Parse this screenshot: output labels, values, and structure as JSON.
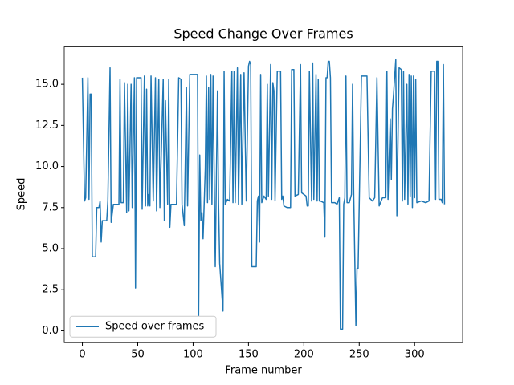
{
  "chart_data": {
    "type": "line",
    "title": "Speed Change Over Frames",
    "xlabel": "Frame number",
    "ylabel": "Speed",
    "legend_loc": "lower left",
    "xlim": [
      -16.35,
      343.35
    ],
    "ylim": [
      -0.72,
      17.32
    ],
    "xticks": [
      0,
      50,
      100,
      150,
      200,
      250,
      300
    ],
    "yticks": [
      {
        "value": 0,
        "label": "0.0"
      },
      2.5,
      {
        "value": 5,
        "label": "5.0"
      },
      7.5,
      {
        "value": 10,
        "label": "10.0"
      },
      12.5,
      {
        "value": 15,
        "label": "15.0"
      }
    ],
    "series": [
      {
        "name": "Speed over frames",
        "color": "#1f77b4",
        "x": [
          0,
          2,
          3,
          5,
          6,
          7,
          8,
          9,
          12,
          13,
          15,
          16,
          17,
          18,
          22,
          23,
          25,
          26,
          28,
          33,
          34,
          35,
          37,
          38,
          40,
          41,
          42,
          44,
          45,
          47,
          48,
          49,
          53,
          54,
          56,
          57,
          58,
          59,
          60,
          61,
          62,
          64,
          66,
          67,
          69,
          70,
          73,
          74,
          75,
          77,
          78,
          79,
          80,
          83,
          85,
          87,
          89,
          90,
          92,
          94,
          95,
          97,
          104,
          105,
          106,
          107,
          108,
          109,
          111,
          112,
          113,
          114,
          115,
          116,
          117,
          118,
          120,
          122,
          123,
          124,
          127,
          128,
          129,
          131,
          133,
          135,
          136,
          137,
          138,
          140,
          141,
          143,
          144,
          146,
          148,
          150,
          151,
          152,
          153,
          157,
          158,
          159,
          160,
          161,
          162,
          164,
          166,
          167,
          168,
          170,
          171,
          172,
          173,
          174,
          176,
          179,
          180,
          181,
          182,
          185,
          188,
          189,
          191,
          192,
          195,
          197,
          198,
          200,
          202,
          203,
          204,
          205,
          207,
          208,
          209,
          211,
          212,
          213,
          214,
          215,
          218,
          219,
          220,
          221,
          222,
          223,
          224,
          225,
          228,
          230,
          232,
          233,
          235,
          236,
          237,
          238,
          239,
          241,
          243,
          244,
          245,
          247,
          248,
          249,
          250,
          252,
          257,
          259,
          262,
          264,
          266,
          268,
          271,
          274,
          275,
          276,
          278,
          279,
          280,
          281,
          283,
          284,
          286,
          288,
          289,
          290,
          291,
          293,
          294,
          295,
          296,
          297,
          298,
          299,
          300,
          301,
          302,
          306,
          310,
          313,
          315,
          318,
          319,
          320,
          321,
          322,
          324,
          325,
          326,
          327
        ],
        "values": [
          15.4,
          7.9,
          8.1,
          15.4,
          8,
          14.4,
          14.4,
          4.5,
          4.5,
          7.5,
          7.5,
          7.9,
          5.4,
          6.7,
          6.7,
          7.9,
          16,
          6.6,
          7.7,
          7.7,
          15.3,
          7.8,
          7.8,
          15.1,
          7.2,
          15,
          7.3,
          15,
          7.5,
          15.4,
          2.6,
          15.4,
          15.4,
          7.4,
          15.5,
          7.6,
          14.7,
          7.6,
          8.3,
          7.6,
          15.5,
          7.9,
          15.4,
          7.3,
          15.3,
          7.5,
          15.3,
          6.7,
          14,
          7.7,
          15.3,
          6.3,
          7.7,
          7.7,
          7.7,
          15.4,
          15.3,
          7.7,
          6.4,
          14.8,
          7.6,
          15.6,
          15.6,
          0.9,
          10.7,
          6.7,
          7.2,
          5.6,
          9.9,
          15.5,
          7.8,
          14.8,
          8,
          15.6,
          7.7,
          15.5,
          3.9,
          14.6,
          7.8,
          4.1,
          1.2,
          15.8,
          7.7,
          8,
          7.9,
          15.8,
          7.8,
          15.8,
          7.8,
          16,
          7.7,
          15.6,
          7.7,
          15.7,
          7.9,
          16.1,
          16.4,
          16.2,
          3.9,
          3.9,
          7.9,
          8.2,
          5.4,
          15.6,
          7.8,
          8.2,
          8,
          15,
          8.2,
          16.2,
          8,
          15.1,
          14.6,
          7.9,
          15.8,
          15.8,
          8,
          8.2,
          7.6,
          7.5,
          7.5,
          15.9,
          15.9,
          8.2,
          8.3,
          16.2,
          8.4,
          8.3,
          8.2,
          7.6,
          7.6,
          15.8,
          7.9,
          16.3,
          8,
          15.6,
          7.9,
          15.3,
          7.9,
          7.9,
          7.8,
          5.7,
          15.4,
          15.4,
          16.4,
          16.4,
          15.4,
          7.8,
          7.8,
          7.7,
          8.1,
          0.1,
          0.1,
          7.7,
          8.1,
          15.5,
          7.8,
          7.8,
          8.3,
          15,
          8.4,
          0.3,
          3.8,
          3.8,
          7.7,
          15.5,
          15.5,
          8.1,
          7.9,
          8.1,
          15.4,
          7.6,
          8.1,
          8.1,
          15.8,
          8,
          12.9,
          9.2,
          13.5,
          14.4,
          16.5,
          7,
          16,
          15.9,
          7.9,
          15.8,
          8,
          15,
          7.7,
          15.6,
          8.2,
          15.5,
          7.5,
          15.5,
          8.1,
          15.3,
          7.8,
          7.9,
          7.8,
          7.9,
          15.8,
          15.8,
          8,
          16.4,
          16.4,
          8,
          8,
          7.8,
          16.2,
          7.7
        ]
      }
    ]
  }
}
